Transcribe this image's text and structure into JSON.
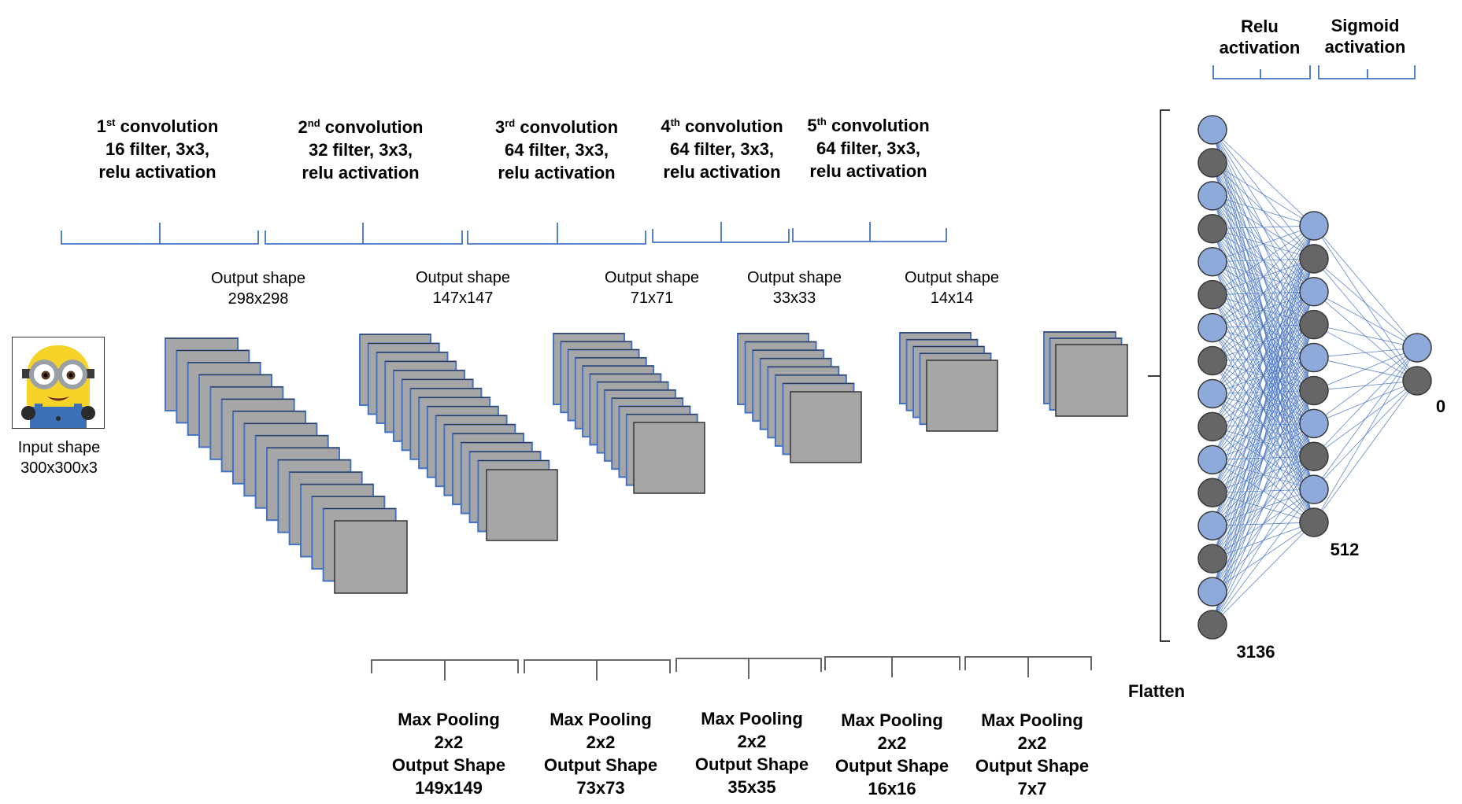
{
  "input": {
    "label": "Input shape",
    "shape": "300x300x3",
    "image_icon": "minion-image"
  },
  "conv_layers": [
    {
      "ordinal_num": "1",
      "ordinal_suffix": "st",
      "title": "convolution",
      "filters": "16 filter, 3x3,",
      "activation": "relu activation",
      "output_label": "Output shape",
      "output_shape": "298x298",
      "stack_count": 16
    },
    {
      "ordinal_num": "2",
      "ordinal_suffix": "nd",
      "title": "convolution",
      "filters": "32 filter, 3x3,",
      "activation": "relu activation",
      "output_label": "Output shape",
      "output_shape": "147x147",
      "stack_count": 16
    },
    {
      "ordinal_num": "3",
      "ordinal_suffix": "rd",
      "title": "convolution",
      "filters": "64 filter, 3x3,",
      "activation": "relu activation",
      "output_label": "Output shape",
      "output_shape": "71x71",
      "stack_count": 12
    },
    {
      "ordinal_num": "4",
      "ordinal_suffix": "th",
      "title": "convolution",
      "filters": "64 filter, 3x3,",
      "activation": "relu activation",
      "output_label": "Output shape",
      "output_shape": "33x33",
      "stack_count": 8
    },
    {
      "ordinal_num": "5",
      "ordinal_suffix": "th",
      "title": "convolution",
      "filters": "64 filter, 3x3,",
      "activation": "relu activation",
      "output_label": "Output shape",
      "output_shape": "14x14",
      "stack_count": 5
    }
  ],
  "final_stack_count": 3,
  "pool_layers": [
    {
      "title": "Max Pooling",
      "size": "2x2",
      "output_label": "Output Shape",
      "output_shape": "149x149"
    },
    {
      "title": "Max Pooling",
      "size": "2x2",
      "output_label": "Output Shape",
      "output_shape": "73x73"
    },
    {
      "title": "Max Pooling",
      "size": "2x2",
      "output_label": "Output Shape",
      "output_shape": "35x35"
    },
    {
      "title": "Max Pooling",
      "size": "2x2",
      "output_label": "Output Shape",
      "output_shape": "16x16"
    },
    {
      "title": "Max Pooling",
      "size": "2x2",
      "output_label": "Output Shape",
      "output_shape": "7x7"
    }
  ],
  "flatten_label": "Flatten",
  "dense": {
    "relu_line1": "Relu",
    "relu_line2": "activation",
    "sigmoid_line1": "Sigmoid",
    "sigmoid_line2": "activation",
    "input_layer_size": "3136",
    "hidden_layer_size": "512",
    "output_layer_size": "0",
    "input_node_count": 16,
    "hidden_node_count": 10,
    "output_node_count": 2
  },
  "colors": {
    "stack_face": "#a6a6a6",
    "stack_edge": "#4472c4",
    "node_blue": "#8eaadb",
    "node_gray": "#666666",
    "connection": "#4472c4",
    "brace_blue": "#4472c4",
    "brace_gray": "#555555"
  }
}
